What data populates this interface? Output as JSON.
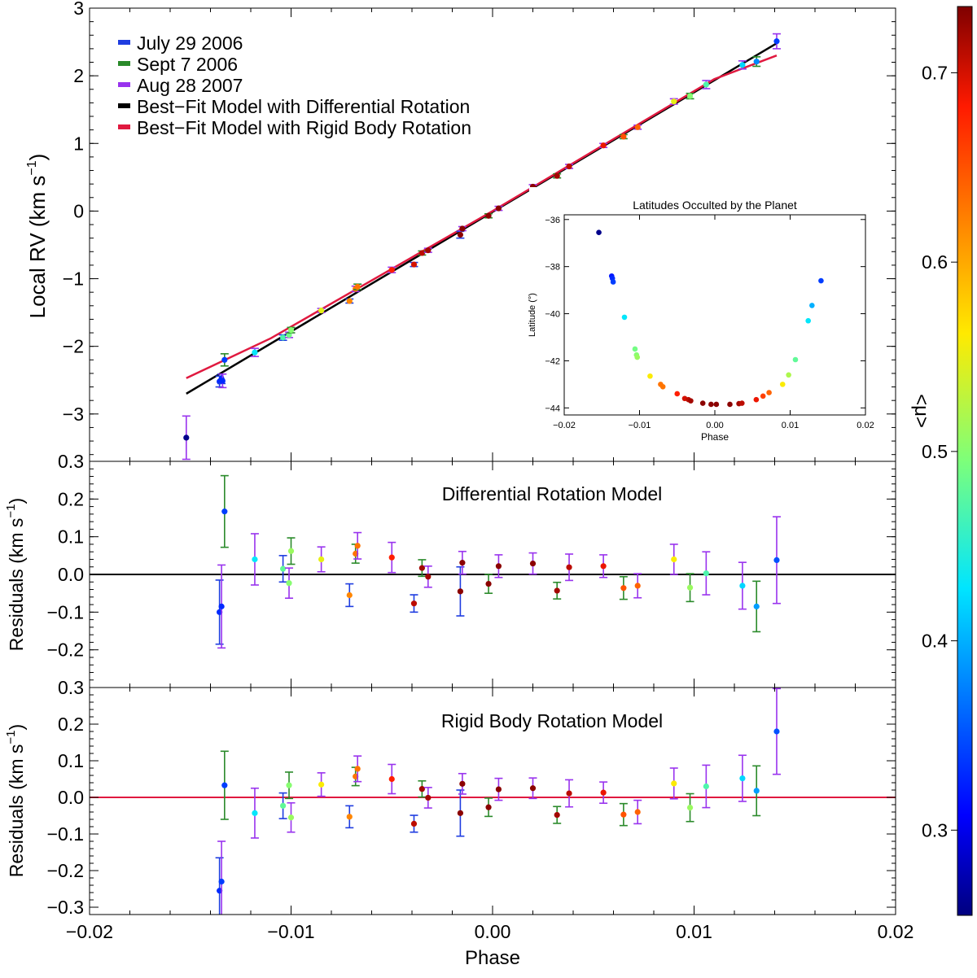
{
  "colors": {
    "july_2006": "#1f3de0",
    "sept_2006": "#2a8a2a",
    "aug_2007": "#9933ee",
    "diff_model": "#000000",
    "rigid_model": "#e0193f"
  },
  "x_axis": {
    "label": "Phase",
    "lim": [
      -0.02,
      0.02
    ],
    "ticks": [
      -0.02,
      -0.01,
      0.0,
      0.01,
      0.02
    ],
    "tick_labels": [
      "−0.02",
      "−0.01",
      "0.00",
      "0.01",
      "0.02"
    ]
  },
  "chart_data": [
    {
      "type": "scatter",
      "panel": "main",
      "ylabel_main": "Local RV (km s",
      "ylabel_sup": "−1",
      "ylabel_end": ")",
      "ylim": [
        -3.7,
        3.0
      ],
      "yticks": [
        -3,
        -2,
        -1,
        0,
        1,
        2,
        3
      ],
      "ytick_labels": [
        "−3",
        "−2",
        "−1",
        "0",
        "1",
        "2",
        "3"
      ],
      "legend": [
        {
          "label": "July 29 2006",
          "color_key": "july_2006"
        },
        {
          "label": "Sept 7 2006",
          "color_key": "sept_2006"
        },
        {
          "label": "Aug 28 2007",
          "color_key": "aug_2007"
        },
        {
          "label": "Best−Fit Model with Differential Rotation",
          "color_key": "diff_model"
        },
        {
          "label": "Best−Fit Model with Rigid Body Rotation",
          "color_key": "rigid_model"
        }
      ],
      "diff_line": [
        [
          -0.0152,
          -2.7
        ],
        [
          0.0141,
          2.48
        ]
      ],
      "rigid_line": [
        [
          -0.0152,
          -2.47
        ],
        [
          -0.011,
          -1.88
        ],
        [
          0.0,
          0.0
        ],
        [
          0.011,
          1.95
        ],
        [
          0.0141,
          2.3
        ]
      ],
      "points": [
        {
          "x": -0.0152,
          "y": -3.35,
          "err": 0.32,
          "s": "aug",
          "mu": 0.26
        },
        {
          "x": -0.01355,
          "y": -2.52,
          "err": 0.08,
          "s": "july",
          "mu": 0.33
        },
        {
          "x": -0.01345,
          "y": -2.48,
          "err": 0.07,
          "s": "july",
          "mu": 0.33
        },
        {
          "x": -0.0134,
          "y": -2.51,
          "err": 0.1,
          "s": "aug",
          "mu": 0.33
        },
        {
          "x": -0.0133,
          "y": -2.2,
          "err": 0.09,
          "s": "sept",
          "mu": 0.34
        },
        {
          "x": -0.0118,
          "y": -2.09,
          "err": 0.06,
          "s": "aug",
          "mu": 0.43
        },
        {
          "x": -0.0104,
          "y": -1.87,
          "err": 0.04,
          "s": "july",
          "mu": 0.47
        },
        {
          "x": -0.0101,
          "y": -1.83,
          "err": 0.04,
          "s": "aug",
          "mu": 0.49
        },
        {
          "x": -0.01,
          "y": -1.76,
          "err": 0.04,
          "s": "sept",
          "mu": 0.5
        },
        {
          "x": -0.0085,
          "y": -1.47,
          "err": 0.03,
          "s": "aug",
          "mu": 0.55
        },
        {
          "x": -0.0071,
          "y": -1.33,
          "err": 0.03,
          "s": "july",
          "mu": 0.62
        },
        {
          "x": -0.0068,
          "y": -1.15,
          "err": 0.04,
          "s": "aug",
          "mu": 0.63
        },
        {
          "x": -0.0067,
          "y": -1.12,
          "err": 0.04,
          "s": "sept",
          "mu": 0.63
        },
        {
          "x": -0.005,
          "y": -0.87,
          "err": 0.04,
          "s": "aug",
          "mu": 0.68
        },
        {
          "x": -0.0039,
          "y": -0.79,
          "err": 0.03,
          "s": "july",
          "mu": 0.7
        },
        {
          "x": -0.0035,
          "y": -0.62,
          "err": 0.03,
          "s": "sept",
          "mu": 0.71
        },
        {
          "x": -0.0032,
          "y": -0.58,
          "err": 0.03,
          "s": "aug",
          "mu": 0.72
        },
        {
          "x": -0.0016,
          "y": -0.35,
          "err": 0.05,
          "s": "july",
          "mu": 0.73
        },
        {
          "x": -0.0015,
          "y": -0.26,
          "err": 0.03,
          "s": "aug",
          "mu": 0.73
        },
        {
          "x": -0.0002,
          "y": -0.07,
          "err": 0.03,
          "s": "sept",
          "mu": 0.73
        },
        {
          "x": 0.0003,
          "y": 0.04,
          "err": 0.03,
          "s": "aug",
          "mu": 0.73
        },
        {
          "x": 0.002,
          "y": 0.36,
          "err": 0.03,
          "s": "aug",
          "mu": 0.73
        },
        {
          "x": 0.0032,
          "y": 0.52,
          "err": 0.03,
          "s": "sept",
          "mu": 0.72
        },
        {
          "x": 0.0038,
          "y": 0.66,
          "err": 0.03,
          "s": "aug",
          "mu": 0.71
        },
        {
          "x": 0.0055,
          "y": 0.97,
          "err": 0.03,
          "s": "aug",
          "mu": 0.69
        },
        {
          "x": 0.0065,
          "y": 1.1,
          "err": 0.03,
          "s": "sept",
          "mu": 0.65
        },
        {
          "x": 0.0072,
          "y": 1.24,
          "err": 0.03,
          "s": "aug",
          "mu": 0.64
        },
        {
          "x": 0.009,
          "y": 1.62,
          "err": 0.04,
          "s": "aug",
          "mu": 0.55
        },
        {
          "x": 0.0098,
          "y": 1.7,
          "err": 0.04,
          "s": "sept",
          "mu": 0.5
        },
        {
          "x": 0.0106,
          "y": 1.87,
          "err": 0.06,
          "s": "aug",
          "mu": 0.47
        },
        {
          "x": 0.0124,
          "y": 2.16,
          "err": 0.06,
          "s": "aug",
          "mu": 0.42
        },
        {
          "x": 0.0131,
          "y": 2.21,
          "err": 0.07,
          "s": "sept",
          "mu": 0.38
        },
        {
          "x": 0.0141,
          "y": 2.51,
          "err": 0.11,
          "s": "aug",
          "mu": 0.34
        }
      ],
      "inset": {
        "title": "Latitudes Occulted by the Planet",
        "xlabel": "Phase",
        "ylabel": "Latitude (°)",
        "xlim": [
          -0.02,
          0.02
        ],
        "ylim": [
          -44.3,
          -35.8
        ],
        "xticks": [
          -0.02,
          -0.01,
          0.0,
          0.01,
          0.02
        ],
        "xtick_labels": [
          "−0.02",
          "−0.01",
          "0.00",
          "0.01",
          "0.02"
        ],
        "yticks": [
          -36,
          -38,
          -40,
          -42,
          -44
        ],
        "ytick_labels": [
          "−36",
          "−38",
          "−40",
          "−42",
          "−44"
        ],
        "points": [
          {
            "x": -0.0154,
            "y": -36.55,
            "mu": 0.26
          },
          {
            "x": -0.0137,
            "y": -38.4,
            "mu": 0.32
          },
          {
            "x": -0.0136,
            "y": -38.5,
            "mu": 0.33
          },
          {
            "x": -0.0135,
            "y": -38.65,
            "mu": 0.34
          },
          {
            "x": -0.012,
            "y": -40.15,
            "mu": 0.43
          },
          {
            "x": -0.0106,
            "y": -41.5,
            "mu": 0.49
          },
          {
            "x": -0.0104,
            "y": -41.75,
            "mu": 0.5
          },
          {
            "x": -0.0103,
            "y": -41.85,
            "mu": 0.51
          },
          {
            "x": -0.0086,
            "y": -42.65,
            "mu": 0.56
          },
          {
            "x": -0.0072,
            "y": -43.0,
            "mu": 0.63
          },
          {
            "x": -0.0069,
            "y": -43.1,
            "mu": 0.63
          },
          {
            "x": -0.005,
            "y": -43.4,
            "mu": 0.68
          },
          {
            "x": -0.004,
            "y": -43.6,
            "mu": 0.7
          },
          {
            "x": -0.0035,
            "y": -43.65,
            "mu": 0.71
          },
          {
            "x": -0.0032,
            "y": -43.7,
            "mu": 0.72
          },
          {
            "x": -0.0016,
            "y": -43.8,
            "mu": 0.73
          },
          {
            "x": -0.0005,
            "y": -43.85,
            "mu": 0.73
          },
          {
            "x": 0.0002,
            "y": -43.85,
            "mu": 0.73
          },
          {
            "x": 0.002,
            "y": -43.85,
            "mu": 0.73
          },
          {
            "x": 0.0032,
            "y": -43.82,
            "mu": 0.72
          },
          {
            "x": 0.0036,
            "y": -43.8,
            "mu": 0.71
          },
          {
            "x": 0.0055,
            "y": -43.65,
            "mu": 0.69
          },
          {
            "x": 0.0064,
            "y": -43.5,
            "mu": 0.66
          },
          {
            "x": 0.0072,
            "y": -43.35,
            "mu": 0.64
          },
          {
            "x": 0.009,
            "y": -43.0,
            "mu": 0.56
          },
          {
            "x": 0.0098,
            "y": -42.6,
            "mu": 0.52
          },
          {
            "x": 0.0107,
            "y": -41.95,
            "mu": 0.48
          },
          {
            "x": 0.0124,
            "y": -40.3,
            "mu": 0.43
          },
          {
            "x": 0.0129,
            "y": -39.65,
            "mu": 0.4
          },
          {
            "x": 0.0141,
            "y": -38.6,
            "mu": 0.34
          }
        ]
      }
    },
    {
      "type": "scatter",
      "panel": "residuals_diff",
      "title": "Differential Rotation Model",
      "ylabel_main": "Residuals (km s",
      "ylabel_sup": "−1",
      "ylabel_end": ")",
      "ylim": [
        -0.3,
        0.3
      ],
      "yticks": [
        0.3,
        0.2,
        0.1,
        0.0,
        -0.1,
        -0.2
      ],
      "ytick_labels": [
        "0.3",
        "0.2",
        "0.1",
        "0.0",
        "−0.1",
        "−0.2"
      ],
      "zero_line_color_key": "diff_model",
      "points": [
        {
          "x": -0.01355,
          "y": -0.1,
          "err": 0.085,
          "s": "july",
          "mu": 0.33
        },
        {
          "x": -0.01345,
          "y": -0.085,
          "err": 0.11,
          "s": "aug",
          "mu": 0.33
        },
        {
          "x": -0.0133,
          "y": 0.167,
          "err": 0.095,
          "s": "sept",
          "mu": 0.34
        },
        {
          "x": -0.0118,
          "y": 0.04,
          "err": 0.068,
          "s": "aug",
          "mu": 0.43
        },
        {
          "x": -0.0104,
          "y": 0.015,
          "err": 0.035,
          "s": "july",
          "mu": 0.48
        },
        {
          "x": -0.0101,
          "y": -0.023,
          "err": 0.04,
          "s": "aug",
          "mu": 0.5
        },
        {
          "x": -0.01,
          "y": 0.062,
          "err": 0.035,
          "s": "sept",
          "mu": 0.51
        },
        {
          "x": -0.0085,
          "y": 0.04,
          "err": 0.033,
          "s": "aug",
          "mu": 0.55
        },
        {
          "x": -0.0071,
          "y": -0.055,
          "err": 0.03,
          "s": "july",
          "mu": 0.62
        },
        {
          "x": -0.0068,
          "y": 0.055,
          "err": 0.025,
          "s": "sept",
          "mu": 0.63
        },
        {
          "x": -0.0067,
          "y": 0.076,
          "err": 0.035,
          "s": "aug",
          "mu": 0.63
        },
        {
          "x": -0.005,
          "y": 0.045,
          "err": 0.04,
          "s": "aug",
          "mu": 0.68
        },
        {
          "x": -0.0039,
          "y": -0.077,
          "err": 0.023,
          "s": "july",
          "mu": 0.71
        },
        {
          "x": -0.0035,
          "y": 0.017,
          "err": 0.022,
          "s": "sept",
          "mu": 0.72
        },
        {
          "x": -0.0032,
          "y": -0.006,
          "err": 0.028,
          "s": "aug",
          "mu": 0.72
        },
        {
          "x": -0.0016,
          "y": -0.045,
          "err": 0.065,
          "s": "july",
          "mu": 0.73
        },
        {
          "x": -0.0015,
          "y": 0.031,
          "err": 0.03,
          "s": "aug",
          "mu": 0.73
        },
        {
          "x": -0.0002,
          "y": -0.025,
          "err": 0.025,
          "s": "sept",
          "mu": 0.73
        },
        {
          "x": 0.0003,
          "y": 0.022,
          "err": 0.03,
          "s": "aug",
          "mu": 0.73
        },
        {
          "x": 0.002,
          "y": 0.029,
          "err": 0.028,
          "s": "aug",
          "mu": 0.73
        },
        {
          "x": 0.0032,
          "y": -0.043,
          "err": 0.022,
          "s": "sept",
          "mu": 0.72
        },
        {
          "x": 0.0038,
          "y": 0.019,
          "err": 0.035,
          "s": "aug",
          "mu": 0.71
        },
        {
          "x": 0.0055,
          "y": 0.022,
          "err": 0.03,
          "s": "aug",
          "mu": 0.69
        },
        {
          "x": 0.0065,
          "y": -0.036,
          "err": 0.03,
          "s": "sept",
          "mu": 0.65
        },
        {
          "x": 0.0072,
          "y": -0.03,
          "err": 0.032,
          "s": "aug",
          "mu": 0.64
        },
        {
          "x": 0.009,
          "y": 0.04,
          "err": 0.04,
          "s": "aug",
          "mu": 0.56
        },
        {
          "x": 0.0098,
          "y": -0.035,
          "err": 0.037,
          "s": "sept",
          "mu": 0.51
        },
        {
          "x": 0.0106,
          "y": 0.003,
          "err": 0.057,
          "s": "aug",
          "mu": 0.47
        },
        {
          "x": 0.0124,
          "y": -0.03,
          "err": 0.062,
          "s": "aug",
          "mu": 0.42
        },
        {
          "x": 0.0131,
          "y": -0.085,
          "err": 0.067,
          "s": "sept",
          "mu": 0.39
        },
        {
          "x": 0.0141,
          "y": 0.038,
          "err": 0.115,
          "s": "aug",
          "mu": 0.35
        }
      ]
    },
    {
      "type": "scatter",
      "panel": "residuals_rigid",
      "title": "Rigid Body Rotation Model",
      "ylabel_main": "Residuals (km s",
      "ylabel_sup": "−1",
      "ylabel_end": ")",
      "ylim": [
        -0.32,
        0.3
      ],
      "yticks": [
        0.3,
        0.2,
        0.1,
        0.0,
        -0.1,
        -0.2,
        -0.3
      ],
      "ytick_labels": [
        "0.3",
        "0.2",
        "0.1",
        "0.0",
        "−0.1",
        "−0.2",
        "−0.3"
      ],
      "zero_line_color_key": "rigid_model",
      "points": [
        {
          "x": -0.01355,
          "y": -0.255,
          "err": 0.09,
          "s": "july",
          "mu": 0.33
        },
        {
          "x": -0.01345,
          "y": -0.23,
          "err": 0.11,
          "s": "aug",
          "mu": 0.34
        },
        {
          "x": -0.0133,
          "y": 0.033,
          "err": 0.093,
          "s": "sept",
          "mu": 0.34
        },
        {
          "x": -0.0118,
          "y": -0.043,
          "err": 0.068,
          "s": "aug",
          "mu": 0.43
        },
        {
          "x": -0.0104,
          "y": -0.023,
          "err": 0.035,
          "s": "july",
          "mu": 0.48
        },
        {
          "x": -0.0101,
          "y": 0.033,
          "err": 0.036,
          "s": "sept",
          "mu": 0.5
        },
        {
          "x": -0.01,
          "y": -0.055,
          "err": 0.04,
          "s": "aug",
          "mu": 0.51
        },
        {
          "x": -0.0085,
          "y": 0.035,
          "err": 0.032,
          "s": "aug",
          "mu": 0.56
        },
        {
          "x": -0.0071,
          "y": -0.053,
          "err": 0.03,
          "s": "july",
          "mu": 0.62
        },
        {
          "x": -0.0068,
          "y": 0.057,
          "err": 0.025,
          "s": "sept",
          "mu": 0.63
        },
        {
          "x": -0.0067,
          "y": 0.078,
          "err": 0.035,
          "s": "aug",
          "mu": 0.63
        },
        {
          "x": -0.005,
          "y": 0.05,
          "err": 0.04,
          "s": "aug",
          "mu": 0.68
        },
        {
          "x": -0.0039,
          "y": -0.072,
          "err": 0.023,
          "s": "july",
          "mu": 0.71
        },
        {
          "x": -0.0035,
          "y": 0.023,
          "err": 0.022,
          "s": "sept",
          "mu": 0.72
        },
        {
          "x": -0.0032,
          "y": -0.001,
          "err": 0.028,
          "s": "aug",
          "mu": 0.72
        },
        {
          "x": -0.0016,
          "y": -0.043,
          "err": 0.063,
          "s": "july",
          "mu": 0.73
        },
        {
          "x": -0.0015,
          "y": 0.037,
          "err": 0.028,
          "s": "aug",
          "mu": 0.73
        },
        {
          "x": -0.0002,
          "y": -0.027,
          "err": 0.025,
          "s": "sept",
          "mu": 0.73
        },
        {
          "x": 0.0003,
          "y": 0.022,
          "err": 0.03,
          "s": "aug",
          "mu": 0.73
        },
        {
          "x": 0.002,
          "y": 0.025,
          "err": 0.028,
          "s": "aug",
          "mu": 0.73
        },
        {
          "x": 0.0032,
          "y": -0.048,
          "err": 0.023,
          "s": "sept",
          "mu": 0.72
        },
        {
          "x": 0.0038,
          "y": 0.011,
          "err": 0.037,
          "s": "aug",
          "mu": 0.71
        },
        {
          "x": 0.0055,
          "y": 0.013,
          "err": 0.029,
          "s": "aug",
          "mu": 0.69
        },
        {
          "x": 0.0065,
          "y": -0.047,
          "err": 0.03,
          "s": "sept",
          "mu": 0.65
        },
        {
          "x": 0.0072,
          "y": -0.04,
          "err": 0.032,
          "s": "aug",
          "mu": 0.64
        },
        {
          "x": 0.009,
          "y": 0.038,
          "err": 0.042,
          "s": "aug",
          "mu": 0.56
        },
        {
          "x": 0.0098,
          "y": -0.028,
          "err": 0.038,
          "s": "sept",
          "mu": 0.51
        },
        {
          "x": 0.0106,
          "y": 0.03,
          "err": 0.058,
          "s": "aug",
          "mu": 0.47
        },
        {
          "x": 0.0124,
          "y": 0.052,
          "err": 0.063,
          "s": "aug",
          "mu": 0.42
        },
        {
          "x": 0.0131,
          "y": 0.018,
          "err": 0.068,
          "s": "sept",
          "mu": 0.39
        },
        {
          "x": 0.0141,
          "y": 0.18,
          "err": 0.117,
          "s": "aug",
          "mu": 0.35
        }
      ]
    }
  ],
  "colorbar": {
    "label": "<μ>",
    "range": [
      0.255,
      0.735
    ],
    "ticks": [
      0.7,
      0.6,
      0.5,
      0.4,
      0.3
    ],
    "tick_labels": [
      "0.7",
      "0.6",
      "0.5",
      "0.4",
      "0.3"
    ]
  }
}
